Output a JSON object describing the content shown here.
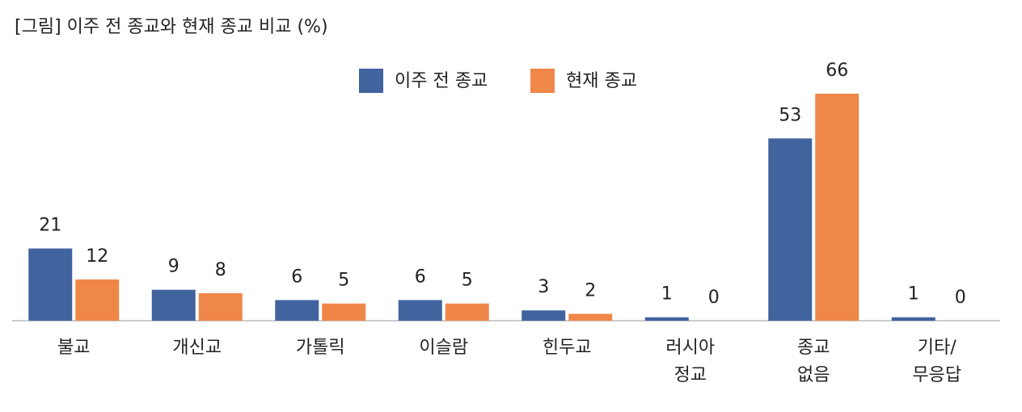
{
  "chart_data": {
    "type": "bar",
    "title": "[그림] 이주 전 종교와 현재 종교 비교 (%)",
    "categories": [
      "불교",
      "개신교",
      "가톨릭",
      "이슬람",
      "힌두교",
      "러시아\n정교",
      "종교\n없음",
      "기타/\n무응답"
    ],
    "series": [
      {
        "name": "이주 전 종교",
        "color": "#41649f",
        "values": [
          21,
          9,
          6,
          6,
          3,
          1,
          53,
          1
        ]
      },
      {
        "name": "현재 종교",
        "color": "#ef8748",
        "values": [
          12,
          8,
          5,
          5,
          2,
          0,
          66,
          0
        ]
      }
    ]
  }
}
